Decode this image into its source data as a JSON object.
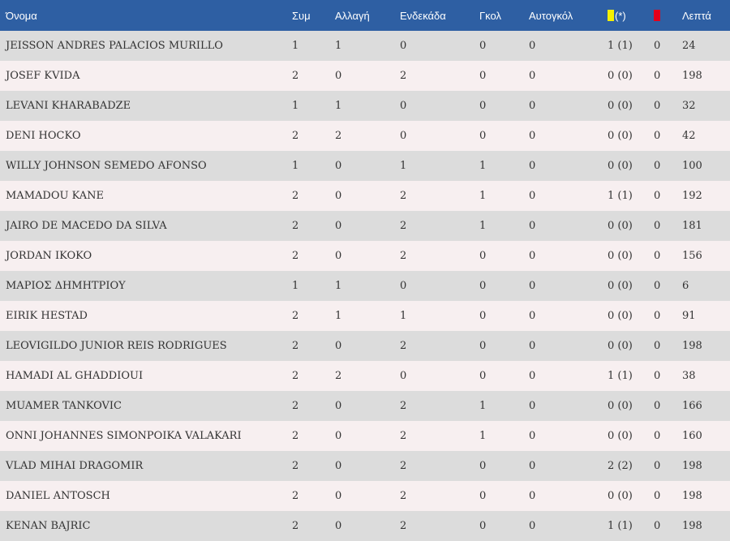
{
  "header": {
    "name": "Όνομα",
    "apps": "Συμ",
    "subs": "Αλλαγή",
    "starts": "Ενδεκάδα",
    "goals": "Γκολ",
    "own_goals": "Αυτογκόλ",
    "yellow_suffix": "(*)",
    "minutes": "Λεπτά"
  },
  "colors": {
    "header_bg": "#2e5fa3",
    "yellow_card": "#f5f000",
    "red_card": "#e3001b"
  },
  "players": [
    {
      "name": "JEISSON ANDRES PALACIOS MURILLO",
      "apps": "1",
      "subs": "1",
      "starts": "0",
      "goals": "0",
      "own_goals": "0",
      "yellow": "1 (1)",
      "red": "0",
      "minutes": "24"
    },
    {
      "name": "JOSEF KVIDA",
      "apps": "2",
      "subs": "0",
      "starts": "2",
      "goals": "0",
      "own_goals": "0",
      "yellow": "0 (0)",
      "red": "0",
      "minutes": "198"
    },
    {
      "name": "LEVANI KHARABADZE",
      "apps": "1",
      "subs": "1",
      "starts": "0",
      "goals": "0",
      "own_goals": "0",
      "yellow": "0 (0)",
      "red": "0",
      "minutes": "32"
    },
    {
      "name": "DENI HOCKO",
      "apps": "2",
      "subs": "2",
      "starts": "0",
      "goals": "0",
      "own_goals": "0",
      "yellow": "0 (0)",
      "red": "0",
      "minutes": "42"
    },
    {
      "name": "WILLY JOHNSON SEMEDO AFONSO",
      "apps": "1",
      "subs": "0",
      "starts": "1",
      "goals": "1",
      "own_goals": "0",
      "yellow": "0 (0)",
      "red": "0",
      "minutes": "100"
    },
    {
      "name": "MAMADOU KANE",
      "apps": "2",
      "subs": "0",
      "starts": "2",
      "goals": "1",
      "own_goals": "0",
      "yellow": "1 (1)",
      "red": "0",
      "minutes": "192"
    },
    {
      "name": "JAIRO DE MACEDO DA SILVA",
      "apps": "2",
      "subs": "0",
      "starts": "2",
      "goals": "1",
      "own_goals": "0",
      "yellow": "0 (0)",
      "red": "0",
      "minutes": "181"
    },
    {
      "name": "JORDAN IKOKO",
      "apps": "2",
      "subs": "0",
      "starts": "2",
      "goals": "0",
      "own_goals": "0",
      "yellow": "0 (0)",
      "red": "0",
      "minutes": "156"
    },
    {
      "name": "ΜΑΡΙΟΣ ΔΗΜΗΤΡΙΟΥ",
      "apps": "1",
      "subs": "1",
      "starts": "0",
      "goals": "0",
      "own_goals": "0",
      "yellow": "0 (0)",
      "red": "0",
      "minutes": "6"
    },
    {
      "name": "EIRIK HESTAD",
      "apps": "2",
      "subs": "1",
      "starts": "1",
      "goals": "0",
      "own_goals": "0",
      "yellow": "0 (0)",
      "red": "0",
      "minutes": "91"
    },
    {
      "name": "LEOVIGILDO JUNIOR REIS RODRIGUES",
      "apps": "2",
      "subs": "0",
      "starts": "2",
      "goals": "0",
      "own_goals": "0",
      "yellow": "0 (0)",
      "red": "0",
      "minutes": "198"
    },
    {
      "name": "HAMADI AL GHADDIOUI",
      "apps": "2",
      "subs": "2",
      "starts": "0",
      "goals": "0",
      "own_goals": "0",
      "yellow": "1 (1)",
      "red": "0",
      "minutes": "38"
    },
    {
      "name": "MUAMER TANKOVIC",
      "apps": "2",
      "subs": "0",
      "starts": "2",
      "goals": "1",
      "own_goals": "0",
      "yellow": "0 (0)",
      "red": "0",
      "minutes": "166"
    },
    {
      "name": "ONNI JOHANNES SIMONPOIKA VALAKARI",
      "apps": "2",
      "subs": "0",
      "starts": "2",
      "goals": "1",
      "own_goals": "0",
      "yellow": "0 (0)",
      "red": "0",
      "minutes": "160"
    },
    {
      "name": "VLAD MIHAI DRAGOMIR",
      "apps": "2",
      "subs": "0",
      "starts": "2",
      "goals": "0",
      "own_goals": "0",
      "yellow": "2 (2)",
      "red": "0",
      "minutes": "198"
    },
    {
      "name": "DANIEL ANTOSCH",
      "apps": "2",
      "subs": "0",
      "starts": "2",
      "goals": "0",
      "own_goals": "0",
      "yellow": "0 (0)",
      "red": "0",
      "minutes": "198"
    },
    {
      "name": "KENAN BAJRIC",
      "apps": "2",
      "subs": "0",
      "starts": "2",
      "goals": "0",
      "own_goals": "0",
      "yellow": "1 (1)",
      "red": "0",
      "minutes": "198"
    }
  ]
}
